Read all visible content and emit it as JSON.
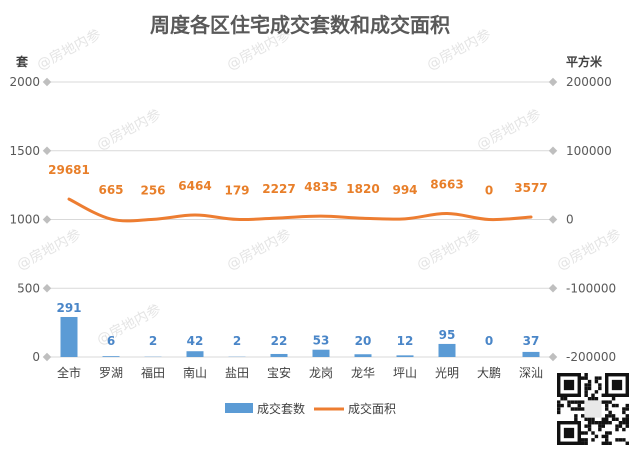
{
  "chart_data": {
    "type": "bar+line",
    "title": "周度各区住宅成交套数和成交面积",
    "y_left_unit": "套",
    "y_right_unit": "平方米",
    "y_left_ticks": [
      "2000",
      "1500",
      "1000",
      "500",
      "0"
    ],
    "y_right_ticks": [
      "200000",
      "100000",
      "0",
      "-100000",
      "-200000"
    ],
    "y_left_lim": [
      0,
      2000
    ],
    "y_right_lim": [
      -200000,
      200000
    ],
    "categories": [
      "全市",
      "罗湖",
      "福田",
      "南山",
      "盐田",
      "宝安",
      "龙岗",
      "龙华",
      "坪山",
      "光明",
      "大鹏",
      "深汕"
    ],
    "series": [
      {
        "name": "成交套数",
        "type": "bar",
        "axis": "left",
        "color": "#5b9bd5",
        "values": [
          291,
          6,
          2,
          42,
          2,
          22,
          53,
          20,
          12,
          95,
          0,
          37
        ]
      },
      {
        "name": "成交面积",
        "type": "line",
        "axis": "right",
        "color": "#ed7d31",
        "values": [
          29681,
          665,
          256,
          6464,
          179,
          2227,
          4835,
          1820,
          994,
          8663,
          0,
          3577
        ]
      }
    ],
    "grid": true,
    "legend": "bottom",
    "watermark": "@房地内参"
  }
}
